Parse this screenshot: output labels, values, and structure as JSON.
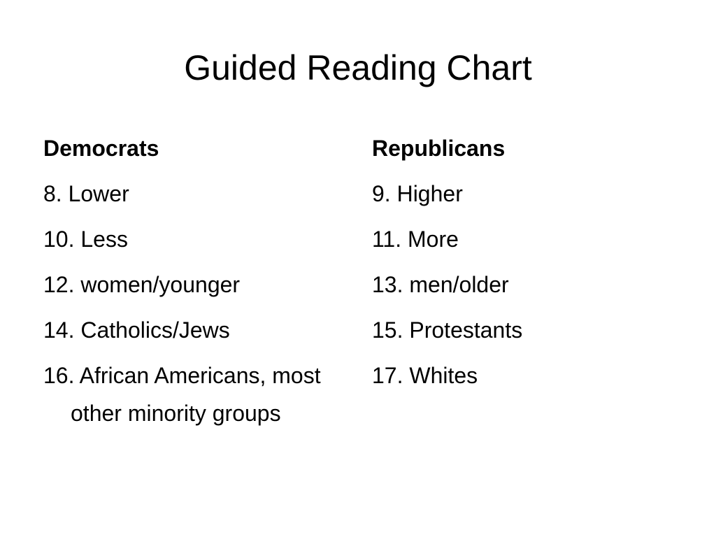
{
  "slide": {
    "title": "Guided Reading Chart",
    "left_column": {
      "heading": "Democrats",
      "items": [
        "8. Lower",
        "10. Less",
        "12. women/younger",
        "14. Catholics/Jews",
        "16. African Americans, most other minority groups"
      ]
    },
    "right_column": {
      "heading": "Republicans",
      "items": [
        "9. Higher",
        "11. More",
        "13. men/older",
        "15. Protestants",
        "17. Whites"
      ]
    }
  }
}
